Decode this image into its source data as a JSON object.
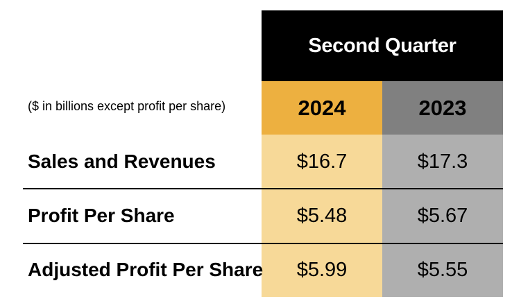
{
  "header": {
    "title": "Second Quarter"
  },
  "units_note": "($ in billions except profit per share)",
  "columns": [
    {
      "year": "2024"
    },
    {
      "year": "2023"
    }
  ],
  "rows": [
    {
      "label": "Sales and Revenues",
      "values": [
        "$16.7",
        "$17.3"
      ]
    },
    {
      "label": "Profit Per Share",
      "values": [
        "$5.48",
        "$5.67"
      ]
    },
    {
      "label": "Adjusted Profit Per Share",
      "values": [
        "$5.99",
        "$5.55"
      ]
    }
  ],
  "colors": {
    "header_bg": "#000000",
    "year_2024_bg": "#EDB040",
    "year_2023_bg": "#808080",
    "body_2024_bg": "#F7D998",
    "body_2023_bg": "#AFAFAF"
  }
}
